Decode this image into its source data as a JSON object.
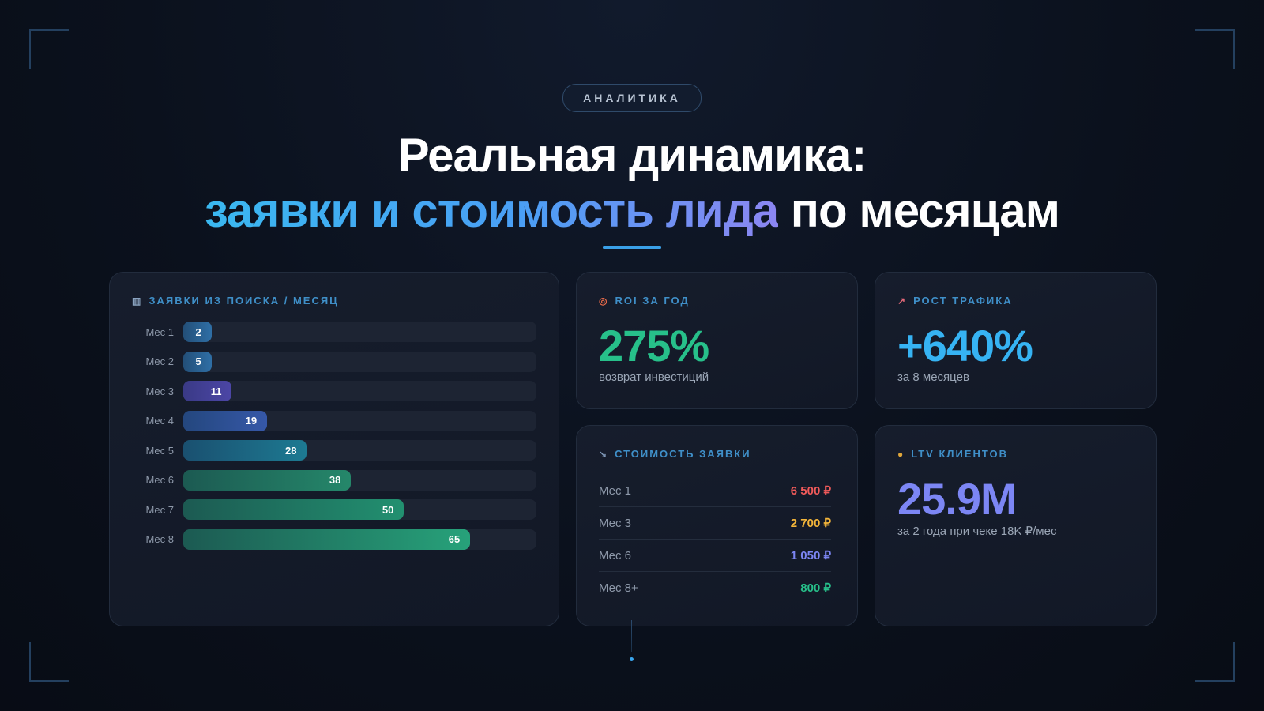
{
  "badge": "АНАЛИТИКА",
  "heading": {
    "line1": "Реальная динамика:",
    "line2_accent": "заявки и стоимость лида",
    "line2_rest": " по месяцам"
  },
  "colors": {
    "green": "#27c08a",
    "cyan": "#36b3f3",
    "violet": "#7c86f4",
    "red": "#f05a5a",
    "amber": "#f5b63a"
  },
  "leads_card": {
    "icon": "bar-chart-icon",
    "title": "ЗАЯВКИ ИЗ ПОИСКА / МЕСЯЦ",
    "max_value": 80,
    "months": [
      {
        "label": "Мес 1",
        "value": "2",
        "color_from": "#234f78",
        "color_to": "#2f6fa6"
      },
      {
        "label": "Мес 2",
        "value": "5",
        "color_from": "#234f78",
        "color_to": "#2f6fa6"
      },
      {
        "label": "Мес 3",
        "value": "11",
        "color_from": "#3a3a86",
        "color_to": "#4c46a6"
      },
      {
        "label": "Мес 4",
        "value": "19",
        "color_from": "#24477e",
        "color_to": "#3658a8"
      },
      {
        "label": "Мес 5",
        "value": "28",
        "color_from": "#1a5070",
        "color_to": "#1d7a92"
      },
      {
        "label": "Мес 6",
        "value": "38",
        "color_from": "#1c5a52",
        "color_to": "#25876a"
      },
      {
        "label": "Мес 7",
        "value": "50",
        "color_from": "#1c5a52",
        "color_to": "#229070"
      },
      {
        "label": "Мес 8",
        "value": "65",
        "color_from": "#1c5a52",
        "color_to": "#27a27a"
      }
    ]
  },
  "roi_card": {
    "icon": "target-icon",
    "title": "ROI ЗА ГОД",
    "value": "275%",
    "caption": "возврат инвестиций"
  },
  "traffic_card": {
    "icon": "trend-up-icon",
    "title": "РОСТ ТРАФИКА",
    "value": "+640%",
    "caption": "за 8 месяцев"
  },
  "cost_card": {
    "icon": "trend-down-icon",
    "title": "СТОИМОСТЬ ЗАЯВКИ",
    "rows": [
      {
        "month": "Мес 1",
        "price": "6 500 ₽",
        "color": "#f05a5a"
      },
      {
        "month": "Мес 3",
        "price": "2 700 ₽",
        "color": "#f5b63a"
      },
      {
        "month": "Мес 6",
        "price": "1 050 ₽",
        "color": "#7c86f4"
      },
      {
        "month": "Мес 8+",
        "price": "800 ₽",
        "color": "#27c08a"
      }
    ]
  },
  "ltv_card": {
    "icon": "money-bag-icon",
    "title": "LTV КЛИЕНТОВ",
    "value": "25.9M",
    "caption": "за 2 года при чеке 18K ₽/мес"
  }
}
